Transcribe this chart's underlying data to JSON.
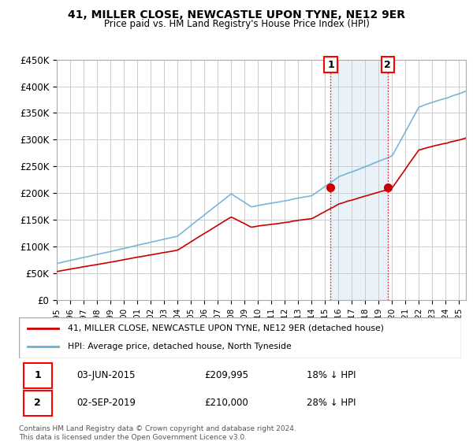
{
  "title": "41, MILLER CLOSE, NEWCASTLE UPON TYNE, NE12 9ER",
  "subtitle": "Price paid vs. HM Land Registry's House Price Index (HPI)",
  "legend_line1": "41, MILLER CLOSE, NEWCASTLE UPON TYNE, NE12 9ER (detached house)",
  "legend_line2": "HPI: Average price, detached house, North Tyneside",
  "transaction1_date": "03-JUN-2015",
  "transaction1_price": "£209,995",
  "transaction1_hpi": "18% ↓ HPI",
  "transaction2_date": "02-SEP-2019",
  "transaction2_price": "£210,000",
  "transaction2_hpi": "28% ↓ HPI",
  "footer": "Contains HM Land Registry data © Crown copyright and database right 2024.\nThis data is licensed under the Open Government Licence v3.0.",
  "hpi_color": "#6baed6",
  "price_color": "#cc0000",
  "marker1_x": 2015.42,
  "marker1_y": 209995,
  "marker2_x": 2019.67,
  "marker2_y": 210000,
  "ylim": [
    0,
    450000
  ],
  "xlim": [
    1995,
    2025.5
  ],
  "yticks": [
    0,
    50000,
    100000,
    150000,
    200000,
    250000,
    300000,
    350000,
    400000,
    450000
  ],
  "ytick_labels": [
    "£0",
    "£50K",
    "£100K",
    "£150K",
    "£200K",
    "£250K",
    "£300K",
    "£350K",
    "£400K",
    "£450K"
  ],
  "background_color": "#ffffff",
  "plot_bg_color": "#ffffff",
  "grid_color": "#cccccc"
}
